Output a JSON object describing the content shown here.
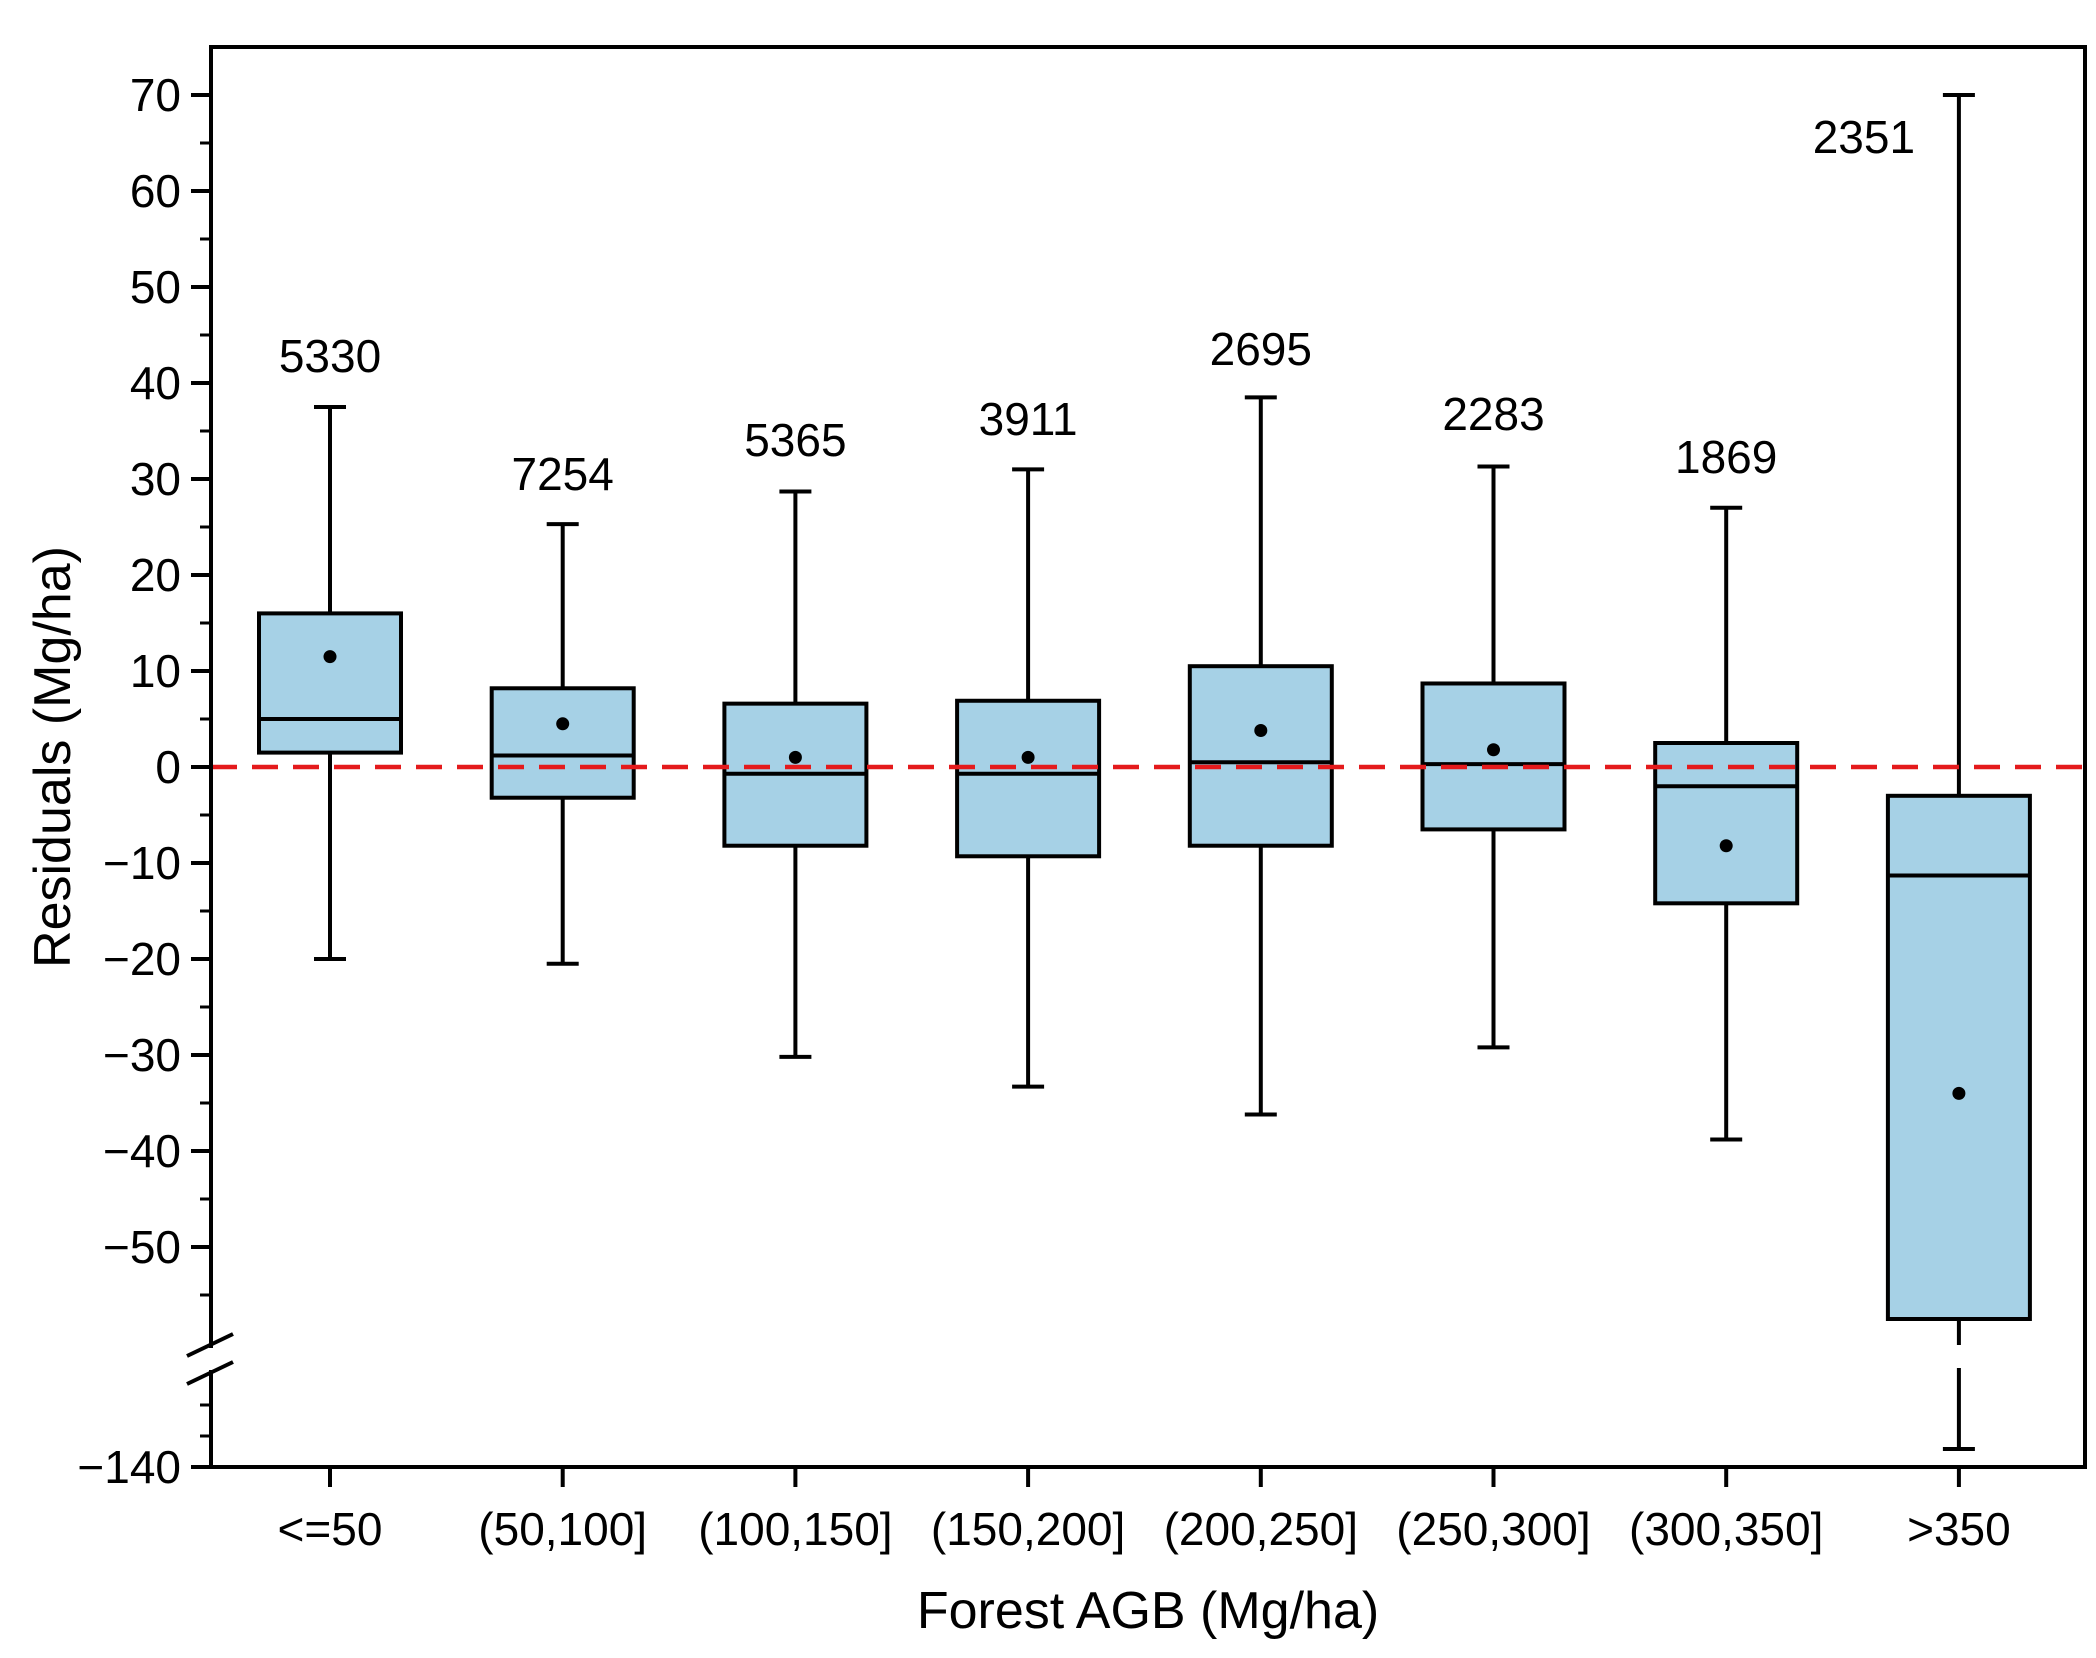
{
  "chart_data": {
    "type": "box",
    "xlabel": "Forest AGB (Mg/ha)",
    "ylabel": "Residuals (Mg/ha)",
    "categories": [
      "<=50",
      "(50,100]",
      "(100,150]",
      "(150,200]",
      "(200,250]",
      "(250,300]",
      "(300,350]",
      ">350"
    ],
    "counts": [
      "5330",
      "7254",
      "5365",
      "3911",
      "2695",
      "2283",
      "1869",
      "2351"
    ],
    "boxes": [
      {
        "whisker_low": -20,
        "q1": 1.5,
        "median": 5,
        "q3": 16,
        "whisker_high": 37.5,
        "mean": 11.5
      },
      {
        "whisker_low": -20.5,
        "q1": -3.2,
        "median": 1.2,
        "q3": 8.2,
        "whisker_high": 25.3,
        "mean": 4.5
      },
      {
        "whisker_low": -30.2,
        "q1": -8.2,
        "median": -0.7,
        "q3": 6.6,
        "whisker_high": 28.7,
        "mean": 1
      },
      {
        "whisker_low": -33.3,
        "q1": -9.3,
        "median": -0.7,
        "q3": 6.9,
        "whisker_high": 31,
        "mean": 1
      },
      {
        "whisker_low": -36.2,
        "q1": -8.2,
        "median": 0.5,
        "q3": 10.5,
        "whisker_high": 38.5,
        "mean": 3.8
      },
      {
        "whisker_low": -29.2,
        "q1": -6.5,
        "median": 0.3,
        "q3": 8.7,
        "whisker_high": 31.3,
        "mean": 1.8
      },
      {
        "whisker_low": -38.8,
        "q1": -14.2,
        "median": -2,
        "q3": 2.5,
        "whisker_high": 27,
        "mean": -8.2
      },
      {
        "whisker_low": -138,
        "q1": -115,
        "median": -11.3,
        "q3": -3,
        "whisker_high": 70,
        "mean": -34
      }
    ],
    "yticks_upper": [
      "70",
      "60",
      "50",
      "40",
      "30",
      "20",
      "10",
      "0",
      "−10",
      "−20",
      "−30",
      "−40",
      "−50"
    ],
    "yticks_lower": [
      "−140"
    ],
    "y_axis_break": [
      -55,
      -135
    ],
    "reference_line": 0,
    "colors": {
      "box_fill": "#a6d1e6",
      "box_stroke": "#000000",
      "reference_line": "#e41a1c"
    }
  }
}
